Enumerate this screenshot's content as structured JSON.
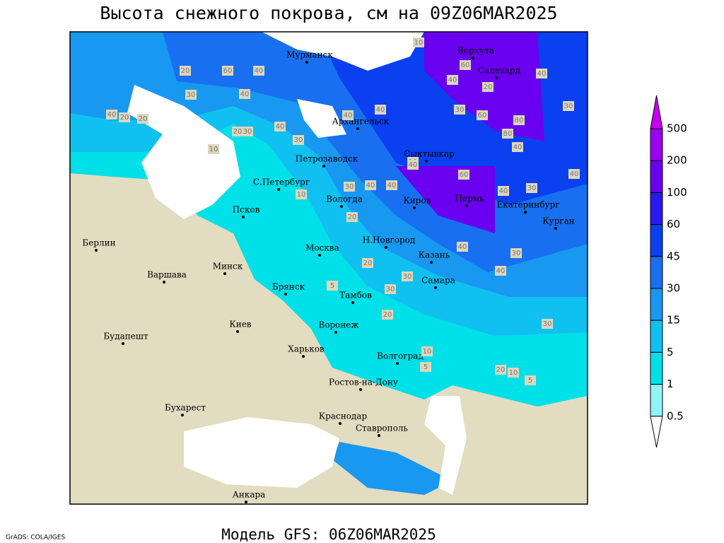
{
  "header": {
    "title": "Высота снежного покрова, см на 09Z06MAR2025"
  },
  "footer": {
    "credit": "GrADS: COLA/IGES",
    "model": "Модель GFS: 06Z06MAR2025"
  },
  "cities": [
    "Мурманск",
    "Воркута",
    "Салехард",
    "Архангельск",
    "Петрозаводск",
    "Сыктывкар",
    "С.Петербург",
    "Вологда",
    "Киров",
    "Пермь",
    "Екатеринбург",
    "Курган",
    "Псков",
    "Н.Новгород",
    "Казань",
    "Берлин",
    "Минск",
    "Москва",
    "Варшава",
    "Брянск",
    "Тамбов",
    "Самара",
    "Киев",
    "Воронеж",
    "Будапешт",
    "Харьков",
    "Волгоград",
    "Ростов-на-Дону",
    "Бухарест",
    "Краснодар",
    "Ставрополь",
    "Анкара"
  ],
  "contour_labels": [
    10,
    40,
    20,
    60,
    40,
    30,
    40,
    20,
    20,
    40,
    20,
    30,
    30,
    40,
    60,
    40,
    10,
    20,
    30,
    40,
    30,
    10,
    40,
    60,
    40,
    80,
    40,
    60,
    40,
    80,
    40,
    30,
    40,
    40,
    30,
    20,
    10,
    20,
    30,
    30,
    20,
    5,
    40,
    30,
    40,
    10,
    5,
    20,
    10,
    5,
    30
  ],
  "legend": {
    "levels": [
      500,
      200,
      100,
      60,
      45,
      30,
      15,
      5,
      1,
      0.5
    ],
    "colors": [
      "#c800f0",
      "#9c00f0",
      "#6a00f0",
      "#2a18f0",
      "#0a40f0",
      "#1870f0",
      "#1898f0",
      "#10c0f0",
      "#00e0e8",
      "#90f4f8",
      "#ffffff"
    ]
  }
}
